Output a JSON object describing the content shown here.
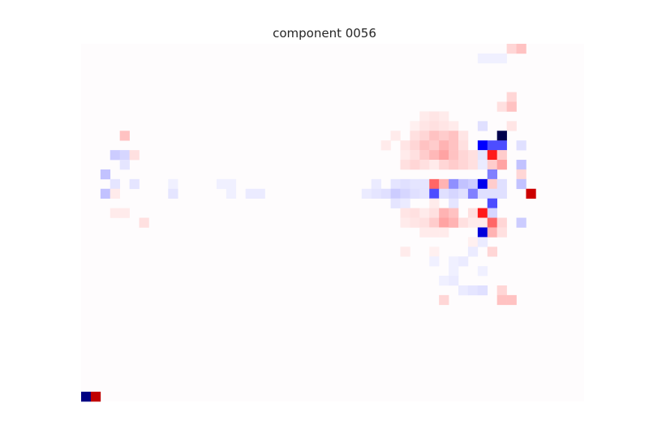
{
  "chart_data": {
    "type": "heatmap",
    "title": "component 0056",
    "xlabel": "",
    "ylabel": "",
    "grid": false,
    "colormap": "seismic",
    "vlim": [
      -1,
      1
    ],
    "rows": 37,
    "cols": 52,
    "cells": [
      {
        "r": 0,
        "c": 44,
        "v": 0.08
      },
      {
        "r": 0,
        "c": 45,
        "v": 0.12
      },
      {
        "r": 1,
        "c": 41,
        "v": -0.03
      },
      {
        "r": 1,
        "c": 42,
        "v": -0.03
      },
      {
        "r": 1,
        "c": 43,
        "v": -0.03
      },
      {
        "r": 5,
        "c": 44,
        "v": 0.08
      },
      {
        "r": 6,
        "c": 43,
        "v": 0.06
      },
      {
        "r": 6,
        "c": 44,
        "v": 0.12
      },
      {
        "r": 7,
        "c": 35,
        "v": 0.04
      },
      {
        "r": 7,
        "c": 36,
        "v": 0.05
      },
      {
        "r": 7,
        "c": 37,
        "v": 0.04
      },
      {
        "r": 8,
        "c": 34,
        "v": 0.03
      },
      {
        "r": 8,
        "c": 35,
        "v": 0.05
      },
      {
        "r": 8,
        "c": 36,
        "v": 0.06
      },
      {
        "r": 8,
        "c": 37,
        "v": 0.05
      },
      {
        "r": 8,
        "c": 38,
        "v": 0.04
      },
      {
        "r": 8,
        "c": 41,
        "v": -0.06
      },
      {
        "r": 8,
        "c": 44,
        "v": 0.05
      },
      {
        "r": 9,
        "c": 4,
        "v": 0.12
      },
      {
        "r": 9,
        "c": 32,
        "v": 0.04
      },
      {
        "r": 9,
        "c": 34,
        "v": 0.06
      },
      {
        "r": 9,
        "c": 35,
        "v": 0.08
      },
      {
        "r": 9,
        "c": 36,
        "v": 0.12
      },
      {
        "r": 9,
        "c": 37,
        "v": 0.1
      },
      {
        "r": 9,
        "c": 38,
        "v": 0.12
      },
      {
        "r": 9,
        "c": 39,
        "v": 0.05
      },
      {
        "r": 9,
        "c": 43,
        "v": -1.0
      },
      {
        "r": 10,
        "c": 31,
        "v": 0.04
      },
      {
        "r": 10,
        "c": 33,
        "v": 0.05
      },
      {
        "r": 10,
        "c": 34,
        "v": 0.08
      },
      {
        "r": 10,
        "c": 35,
        "v": 0.12
      },
      {
        "r": 10,
        "c": 36,
        "v": 0.1
      },
      {
        "r": 10,
        "c": 37,
        "v": 0.15
      },
      {
        "r": 10,
        "c": 38,
        "v": 0.12
      },
      {
        "r": 10,
        "c": 39,
        "v": 0.06
      },
      {
        "r": 10,
        "c": 41,
        "v": -0.5
      },
      {
        "r": 10,
        "c": 42,
        "v": -0.35
      },
      {
        "r": 10,
        "c": 43,
        "v": -0.35
      },
      {
        "r": 10,
        "c": 45,
        "v": -0.06
      },
      {
        "r": 11,
        "c": 3,
        "v": -0.1
      },
      {
        "r": 11,
        "c": 4,
        "v": -0.08
      },
      {
        "r": 11,
        "c": 5,
        "v": 0.06
      },
      {
        "r": 11,
        "c": 33,
        "v": 0.04
      },
      {
        "r": 11,
        "c": 34,
        "v": 0.06
      },
      {
        "r": 11,
        "c": 35,
        "v": 0.1
      },
      {
        "r": 11,
        "c": 36,
        "v": 0.14
      },
      {
        "r": 11,
        "c": 37,
        "v": 0.18
      },
      {
        "r": 11,
        "c": 38,
        "v": 0.12
      },
      {
        "r": 11,
        "c": 39,
        "v": 0.08
      },
      {
        "r": 11,
        "c": 40,
        "v": 0.06
      },
      {
        "r": 11,
        "c": 41,
        "v": -0.05
      },
      {
        "r": 11,
        "c": 42,
        "v": 0.45
      },
      {
        "r": 11,
        "c": 43,
        "v": 0.1
      },
      {
        "r": 12,
        "c": 4,
        "v": -0.05
      },
      {
        "r": 12,
        "c": 33,
        "v": 0.06
      },
      {
        "r": 12,
        "c": 34,
        "v": 0.08
      },
      {
        "r": 12,
        "c": 35,
        "v": 0.06
      },
      {
        "r": 12,
        "c": 36,
        "v": 0.04
      },
      {
        "r": 12,
        "c": 37,
        "v": 0.08
      },
      {
        "r": 12,
        "c": 38,
        "v": 0.1
      },
      {
        "r": 12,
        "c": 39,
        "v": 0.08
      },
      {
        "r": 12,
        "c": 40,
        "v": 0.06
      },
      {
        "r": 12,
        "c": 41,
        "v": -0.04
      },
      {
        "r": 12,
        "c": 42,
        "v": 0.1
      },
      {
        "r": 12,
        "c": 43,
        "v": 0.18
      },
      {
        "r": 12,
        "c": 45,
        "v": -0.12
      },
      {
        "r": 13,
        "c": 2,
        "v": -0.12
      },
      {
        "r": 13,
        "c": 42,
        "v": -0.25
      },
      {
        "r": 13,
        "c": 45,
        "v": 0.08
      },
      {
        "r": 14,
        "c": 3,
        "v": -0.05
      },
      {
        "r": 14,
        "c": 5,
        "v": -0.05
      },
      {
        "r": 14,
        "c": 9,
        "v": -0.03
      },
      {
        "r": 14,
        "c": 14,
        "v": -0.03
      },
      {
        "r": 14,
        "c": 15,
        "v": -0.03
      },
      {
        "r": 14,
        "c": 30,
        "v": -0.04
      },
      {
        "r": 14,
        "c": 32,
        "v": -0.05
      },
      {
        "r": 14,
        "c": 33,
        "v": -0.06
      },
      {
        "r": 14,
        "c": 34,
        "v": -0.05
      },
      {
        "r": 14,
        "c": 35,
        "v": -0.05
      },
      {
        "r": 14,
        "c": 36,
        "v": 0.3
      },
      {
        "r": 14,
        "c": 37,
        "v": 0.15
      },
      {
        "r": 14,
        "c": 38,
        "v": -0.22
      },
      {
        "r": 14,
        "c": 39,
        "v": -0.12
      },
      {
        "r": 14,
        "c": 40,
        "v": -0.1
      },
      {
        "r": 14,
        "c": 41,
        "v": -0.55
      },
      {
        "r": 14,
        "c": 42,
        "v": 0.1
      },
      {
        "r": 14,
        "c": 43,
        "v": -0.06
      },
      {
        "r": 14,
        "c": 45,
        "v": -0.12
      },
      {
        "r": 15,
        "c": 2,
        "v": -0.12
      },
      {
        "r": 15,
        "c": 3,
        "v": 0.04
      },
      {
        "r": 15,
        "c": 9,
        "v": -0.05
      },
      {
        "r": 15,
        "c": 15,
        "v": -0.03
      },
      {
        "r": 15,
        "c": 17,
        "v": -0.04
      },
      {
        "r": 15,
        "c": 18,
        "v": -0.04
      },
      {
        "r": 15,
        "c": 29,
        "v": -0.04
      },
      {
        "r": 15,
        "c": 30,
        "v": -0.05
      },
      {
        "r": 15,
        "c": 31,
        "v": -0.06
      },
      {
        "r": 15,
        "c": 32,
        "v": -0.1
      },
      {
        "r": 15,
        "c": 33,
        "v": -0.08
      },
      {
        "r": 15,
        "c": 34,
        "v": -0.06
      },
      {
        "r": 15,
        "c": 35,
        "v": -0.05
      },
      {
        "r": 15,
        "c": 36,
        "v": -0.35
      },
      {
        "r": 15,
        "c": 37,
        "v": -0.06
      },
      {
        "r": 15,
        "c": 38,
        "v": -0.08
      },
      {
        "r": 15,
        "c": 39,
        "v": -0.06
      },
      {
        "r": 15,
        "c": 40,
        "v": -0.25
      },
      {
        "r": 15,
        "c": 41,
        "v": -0.06
      },
      {
        "r": 15,
        "c": 42,
        "v": -0.06
      },
      {
        "r": 15,
        "c": 43,
        "v": -0.06
      },
      {
        "r": 15,
        "c": 46,
        "v": 0.7
      },
      {
        "r": 16,
        "c": 32,
        "v": -0.05
      },
      {
        "r": 16,
        "c": 33,
        "v": -0.04
      },
      {
        "r": 16,
        "c": 36,
        "v": 0.04
      },
      {
        "r": 16,
        "c": 38,
        "v": -0.05
      },
      {
        "r": 16,
        "c": 42,
        "v": -0.35
      },
      {
        "r": 17,
        "c": 3,
        "v": 0.04
      },
      {
        "r": 17,
        "c": 4,
        "v": 0.04
      },
      {
        "r": 17,
        "c": 33,
        "v": 0.05
      },
      {
        "r": 17,
        "c": 34,
        "v": 0.06
      },
      {
        "r": 17,
        "c": 35,
        "v": 0.04
      },
      {
        "r": 17,
        "c": 36,
        "v": 0.06
      },
      {
        "r": 17,
        "c": 37,
        "v": 0.15
      },
      {
        "r": 17,
        "c": 38,
        "v": 0.12
      },
      {
        "r": 17,
        "c": 40,
        "v": 0.06
      },
      {
        "r": 17,
        "c": 41,
        "v": 0.45
      },
      {
        "r": 17,
        "c": 42,
        "v": -0.08
      },
      {
        "r": 18,
        "c": 6,
        "v": 0.06
      },
      {
        "r": 18,
        "c": 33,
        "v": 0.04
      },
      {
        "r": 18,
        "c": 34,
        "v": 0.05
      },
      {
        "r": 18,
        "c": 35,
        "v": 0.06
      },
      {
        "r": 18,
        "c": 36,
        "v": 0.1
      },
      {
        "r": 18,
        "c": 37,
        "v": 0.18
      },
      {
        "r": 18,
        "c": 38,
        "v": 0.15
      },
      {
        "r": 18,
        "c": 39,
        "v": 0.06
      },
      {
        "r": 18,
        "c": 40,
        "v": 0.04
      },
      {
        "r": 18,
        "c": 41,
        "v": 0.04
      },
      {
        "r": 18,
        "c": 42,
        "v": 0.3
      },
      {
        "r": 18,
        "c": 43,
        "v": 0.08
      },
      {
        "r": 18,
        "c": 45,
        "v": -0.1
      },
      {
        "r": 19,
        "c": 35,
        "v": 0.04
      },
      {
        "r": 19,
        "c": 36,
        "v": 0.04
      },
      {
        "r": 19,
        "c": 37,
        "v": 0.04
      },
      {
        "r": 19,
        "c": 41,
        "v": -0.6
      },
      {
        "r": 19,
        "c": 42,
        "v": 0.15
      },
      {
        "r": 19,
        "c": 43,
        "v": 0.06
      },
      {
        "r": 20,
        "c": 40,
        "v": 0.03
      },
      {
        "r": 20,
        "c": 41,
        "v": -0.04
      },
      {
        "r": 21,
        "c": 33,
        "v": 0.04
      },
      {
        "r": 21,
        "c": 36,
        "v": 0.03
      },
      {
        "r": 21,
        "c": 40,
        "v": -0.04
      },
      {
        "r": 21,
        "c": 42,
        "v": 0.08
      },
      {
        "r": 22,
        "c": 36,
        "v": -0.03
      },
      {
        "r": 22,
        "c": 38,
        "v": -0.03
      },
      {
        "r": 22,
        "c": 39,
        "v": -0.04
      },
      {
        "r": 23,
        "c": 38,
        "v": -0.03
      },
      {
        "r": 23,
        "c": 41,
        "v": -0.03
      },
      {
        "r": 24,
        "c": 37,
        "v": -0.03
      },
      {
        "r": 24,
        "c": 38,
        "v": -0.04
      },
      {
        "r": 25,
        "c": 39,
        "v": -0.04
      },
      {
        "r": 25,
        "c": 40,
        "v": -0.05
      },
      {
        "r": 25,
        "c": 41,
        "v": -0.06
      },
      {
        "r": 25,
        "c": 43,
        "v": 0.08
      },
      {
        "r": 26,
        "c": 37,
        "v": 0.08
      },
      {
        "r": 26,
        "c": 43,
        "v": 0.12
      },
      {
        "r": 26,
        "c": 44,
        "v": 0.12
      },
      {
        "r": 26,
        "c": 0,
        "v": -0.85
      },
      {
        "r": 26,
        "c": 1,
        "v": 0.75
      }
    ]
  }
}
